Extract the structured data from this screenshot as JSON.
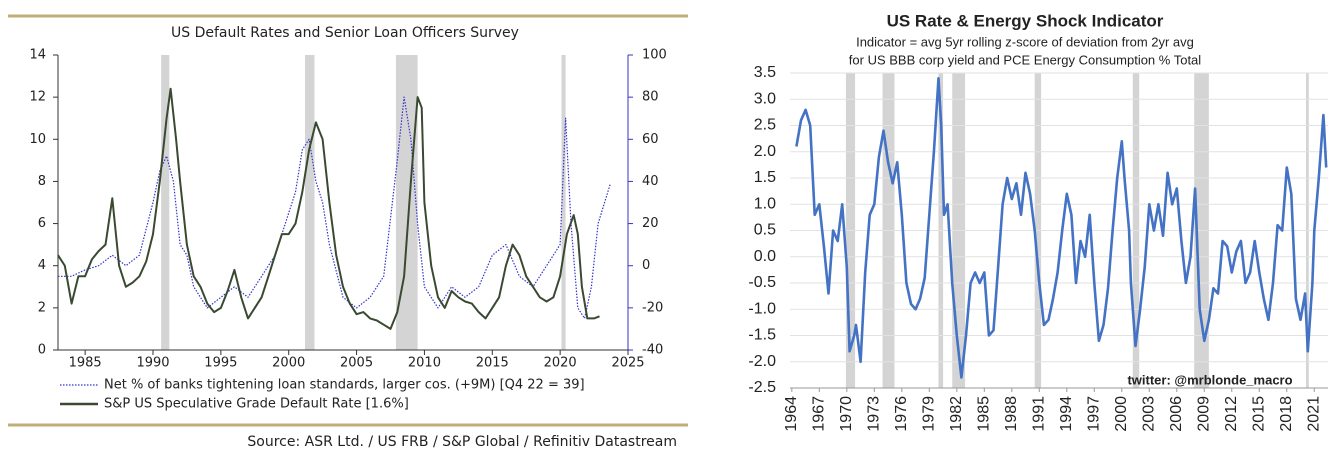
{
  "chart_data": [
    {
      "type": "line",
      "title": "US Default Rates and Senior Loan Officers Survey",
      "source": "Source: ASR Ltd. / US FRB / S&P Global / Refinitiv Datastream",
      "xlim": [
        1983,
        2025
      ],
      "xticks": [
        1985,
        1990,
        1995,
        2000,
        2005,
        2010,
        2015,
        2020,
        2025
      ],
      "ylim": [
        0,
        14
      ],
      "yticks": [
        0,
        2,
        4,
        6,
        8,
        10,
        12,
        14
      ],
      "y2lim": [
        -40,
        100
      ],
      "y2ticks": [
        -40,
        -20,
        0,
        20,
        40,
        60,
        80,
        100
      ],
      "grid": false,
      "shaded_periods": [
        [
          1990.6,
          1991.2
        ],
        [
          2001.2,
          2001.9
        ],
        [
          2007.9,
          2009.5
        ],
        [
          2020.1,
          2020.4
        ]
      ],
      "series": [
        {
          "name": "Net % of banks tightening loan standards, larger cos. (+9M) [Q4 22 = 39]",
          "color": "#3333cc",
          "style": "dotted",
          "axis": "y2",
          "x": [
            1983,
            1984,
            1985,
            1986,
            1987,
            1988,
            1989,
            1990,
            1990.5,
            1991,
            1991.5,
            1992,
            1992.5,
            1993,
            1994,
            1995,
            1996,
            1997,
            1998,
            1999,
            2000,
            2000.5,
            2001,
            2001.5,
            2002,
            2002.5,
            2003,
            2004,
            2005,
            2006,
            2007,
            2008,
            2008.5,
            2009,
            2009.5,
            2010,
            2011,
            2012,
            2013,
            2014,
            2015,
            2016,
            2017,
            2018,
            2019,
            2020,
            2020.4,
            2020.8,
            2021.3,
            2021.8,
            2022.3,
            2022.8,
            2023.7
          ],
          "values": [
            -5,
            -5,
            -2,
            0,
            5,
            0,
            5,
            30,
            45,
            52,
            40,
            10,
            5,
            -10,
            -20,
            -15,
            -10,
            -15,
            -5,
            5,
            25,
            35,
            55,
            60,
            40,
            30,
            10,
            -15,
            -20,
            -15,
            -5,
            50,
            80,
            60,
            20,
            -10,
            -20,
            -10,
            -15,
            -10,
            5,
            10,
            -5,
            -10,
            0,
            10,
            70,
            20,
            -20,
            -25,
            -10,
            20,
            39
          ]
        },
        {
          "name": "S&P US Speculative Grade Default Rate [1.6%]",
          "color": "#3a4a32",
          "style": "solid",
          "axis": "y",
          "x": [
            1983,
            1983.5,
            1984,
            1984.5,
            1985,
            1985.5,
            1986,
            1986.5,
            1987,
            1987.5,
            1988,
            1988.5,
            1989,
            1989.5,
            1990,
            1990.5,
            1991,
            1991.3,
            1991.7,
            1992,
            1992.5,
            1993,
            1993.5,
            1994,
            1994.5,
            1995,
            1995.5,
            1996,
            1996.5,
            1997,
            1997.5,
            1998,
            1998.5,
            1999,
            1999.5,
            2000,
            2000.5,
            2001,
            2001.5,
            2002,
            2002.5,
            2003,
            2003.5,
            2004,
            2004.5,
            2005,
            2005.5,
            2006,
            2006.5,
            2007,
            2007.5,
            2008,
            2008.5,
            2009,
            2009.5,
            2009.8,
            2010,
            2010.5,
            2011,
            2011.5,
            2012,
            2012.5,
            2013,
            2013.5,
            2014,
            2014.5,
            2015,
            2015.5,
            2016,
            2016.5,
            2017,
            2017.5,
            2018,
            2018.5,
            2019,
            2019.5,
            2020,
            2020.5,
            2021,
            2021.3,
            2021.6,
            2022,
            2022.5,
            2022.9
          ],
          "values": [
            4.5,
            4,
            2.2,
            3.5,
            3.5,
            4.3,
            4.7,
            5,
            7.2,
            4,
            3,
            3.2,
            3.5,
            4.2,
            5.5,
            8,
            11,
            12.4,
            10,
            8,
            5,
            3.5,
            3,
            2.2,
            1.8,
            2,
            2.8,
            3.8,
            2.5,
            1.5,
            2,
            2.5,
            3.5,
            4.5,
            5.5,
            5.5,
            6,
            7.5,
            9.5,
            10.8,
            10,
            7,
            4.5,
            3,
            2.2,
            1.7,
            1.8,
            1.5,
            1.4,
            1.2,
            1.0,
            1.8,
            3.5,
            8,
            12,
            11.5,
            7,
            4,
            2.5,
            2,
            2.8,
            2.5,
            2.3,
            2.2,
            1.8,
            1.5,
            2,
            2.5,
            4,
            5,
            4.5,
            3.5,
            3,
            2.5,
            2.3,
            2.5,
            3.5,
            5.5,
            6.4,
            5.5,
            3,
            1.5,
            1.5,
            1.6
          ]
        }
      ]
    },
    {
      "type": "line",
      "title": "US Rate & Energy Shock Indicator",
      "subtitle": [
        "Indicator = avg 5yr rolling z-score of deviation from 2yr avg",
        "for US BBB corp yield and PCE Energy Consumption % Total"
      ],
      "annotation": "twitter: @mrblonde_macro",
      "xlim": [
        1963.8,
        2022.5
      ],
      "xticks": [
        1964,
        1967,
        1970,
        1973,
        1976,
        1979,
        1982,
        1985,
        1988,
        1991,
        1994,
        1997,
        2000,
        2003,
        2006,
        2009,
        2012,
        2015,
        2018,
        2021
      ],
      "ylim": [
        -2.5,
        3.5
      ],
      "yticks": [
        3.5,
        {
          "value": 3,
          "label": "3.0"
        },
        2.5,
        {
          "value": 2,
          "label": "2.0"
        },
        1.5,
        {
          "value": 1,
          "label": "1.0"
        },
        0.5,
        {
          "value": 0,
          "label": "0.0"
        },
        -0.5,
        {
          "value": -1,
          "label": "-1.0"
        },
        -1.5,
        {
          "value": -2,
          "label": "-2.0"
        },
        -2.5
      ],
      "grid": true,
      "shaded_periods": [
        [
          1969.9,
          1970.9
        ],
        [
          1973.9,
          1975.2
        ],
        [
          1980.0,
          1980.5
        ],
        [
          1981.5,
          1982.9
        ],
        [
          1990.5,
          1991.2
        ],
        [
          2001.2,
          2001.9
        ],
        [
          2007.9,
          2009.5
        ],
        [
          2020.1,
          2020.4
        ]
      ],
      "series": [
        {
          "color": "#4472c4",
          "style": "solid",
          "axis": "y",
          "x": [
            1964.5,
            1965,
            1965.5,
            1966,
            1966.5,
            1967,
            1967.5,
            1968,
            1968.5,
            1969,
            1969.5,
            1970,
            1970.3,
            1970.8,
            1971,
            1971.5,
            1972,
            1972.5,
            1973,
            1973.5,
            1974,
            1974.5,
            1975,
            1975.5,
            1976,
            1976.5,
            1977,
            1977.5,
            1978,
            1978.5,
            1979,
            1979.5,
            1980,
            1980.3,
            1980.6,
            1981,
            1981.5,
            1982,
            1982.5,
            1983,
            1983.5,
            1984,
            1984.5,
            1985,
            1985.5,
            1986,
            1986.5,
            1987,
            1987.5,
            1988,
            1988.5,
            1989,
            1989.5,
            1990,
            1990.5,
            1991,
            1991.5,
            1992,
            1992.5,
            1993,
            1993.5,
            1994,
            1994.5,
            1995,
            1995.5,
            1996,
            1996.5,
            1997,
            1997.5,
            1998,
            1998.5,
            1999,
            1999.5,
            2000,
            2000.3,
            2000.8,
            2001,
            2001.5,
            2002,
            2002.5,
            2003,
            2003.5,
            2004,
            2004.5,
            2005,
            2005.5,
            2006,
            2006.5,
            2007,
            2007.5,
            2008,
            2008.5,
            2009,
            2009.5,
            2010,
            2010.5,
            2011,
            2011.5,
            2012,
            2012.5,
            2013,
            2013.5,
            2014,
            2014.5,
            2015,
            2015.5,
            2016,
            2016.5,
            2017,
            2017.5,
            2018,
            2018.5,
            2019,
            2019.5,
            2020,
            2020.3,
            2020.8,
            2021,
            2021.5,
            2022,
            2022.3
          ],
          "values": [
            2.1,
            2.6,
            2.8,
            2.5,
            0.8,
            1.0,
            0.2,
            -0.7,
            0.5,
            0.3,
            1.0,
            -0.2,
            -1.8,
            -1.5,
            -1.3,
            -2.0,
            -0.3,
            0.8,
            1.0,
            1.9,
            2.4,
            1.8,
            1.4,
            1.8,
            0.8,
            -0.5,
            -0.9,
            -1.0,
            -0.8,
            -0.4,
            0.8,
            2.0,
            3.4,
            2.5,
            0.8,
            1.0,
            -0.5,
            -1.5,
            -2.3,
            -1.5,
            -0.5,
            -0.3,
            -0.5,
            -0.3,
            -1.5,
            -1.4,
            -0.2,
            1.0,
            1.5,
            1.1,
            1.4,
            0.8,
            1.6,
            1.2,
            0.5,
            -0.5,
            -1.3,
            -1.2,
            -0.8,
            -0.3,
            0.5,
            1.2,
            0.8,
            -0.5,
            0.3,
            0,
            0.8,
            -0.5,
            -1.6,
            -1.3,
            -0.6,
            0.5,
            1.5,
            2.2,
            1.5,
            0.5,
            -0.5,
            -1.7,
            -1.0,
            -0.2,
            1.0,
            0.5,
            1.0,
            0.4,
            1.6,
            1.0,
            1.3,
            0.3,
            -0.5,
            0,
            1.3,
            -1.0,
            -1.6,
            -1.2,
            -0.6,
            -0.7,
            0.3,
            0.2,
            -0.3,
            0.1,
            0.3,
            -0.5,
            -0.3,
            0.3,
            -0.3,
            -0.8,
            -1.2,
            -0.5,
            0.6,
            0.5,
            1.7,
            1.2,
            -0.8,
            -1.2,
            -0.7,
            -1.8,
            -0.5,
            0.5,
            1.5,
            2.7,
            1.7
          ]
        }
      ]
    }
  ]
}
